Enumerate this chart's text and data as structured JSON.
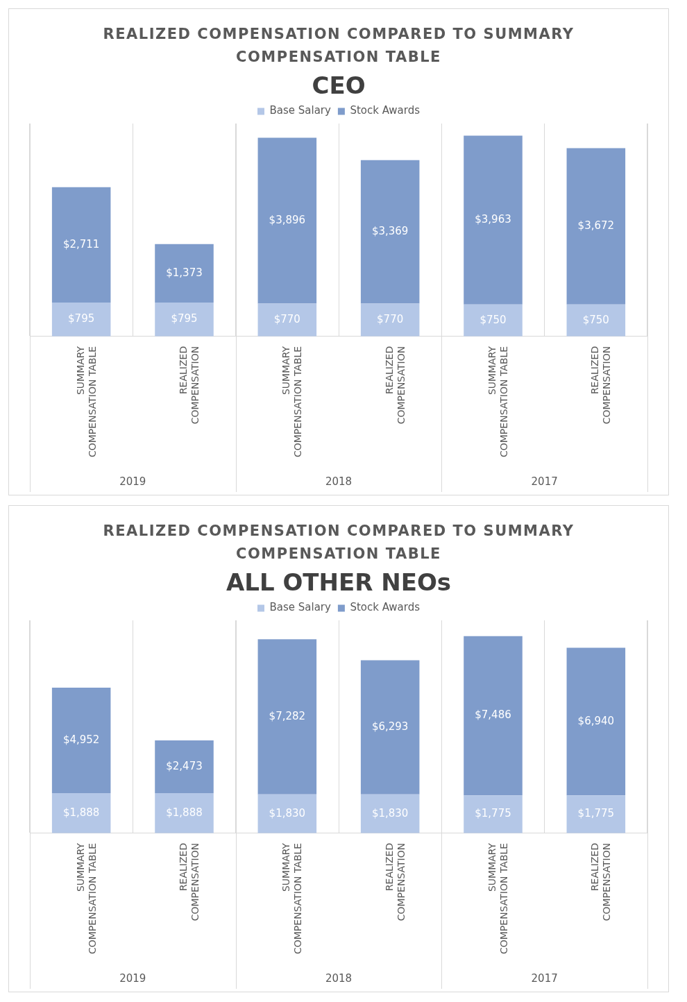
{
  "chart_data": [
    {
      "type": "bar",
      "title": "REALIZED COMPENSATION COMPARED TO SUMMARY COMPENSATION TABLE",
      "subtitle": "CEO",
      "categories": [
        "SUMMARY COMPENSATION TABLE",
        "REALIZED COMPENSATION",
        "SUMMARY COMPENSATION TABLE",
        "REALIZED COMPENSATION",
        "SUMMARY COMPENSATION TABLE",
        "REALIZED COMPENSATION"
      ],
      "stacked": true,
      "legend": "top",
      "grid": "x",
      "annotations": [
        "2019",
        "2018",
        "2017"
      ],
      "series": [
        {
          "name": "Base Salary",
          "color": "#b4c7e7",
          "values": [
            795,
            795,
            770,
            770,
            750,
            750
          ],
          "value_labels": [
            "$795",
            "$795",
            "$770",
            "$770",
            "$750",
            "$750"
          ]
        },
        {
          "name": "Stock Awards",
          "color": "#7f9ccb",
          "values": [
            2711,
            1373,
            3896,
            3369,
            3963,
            3672
          ],
          "value_labels": [
            "$2,711",
            "$1,373",
            "$3,896",
            "$3,369",
            "$3,963",
            "$3,672"
          ]
        }
      ]
    },
    {
      "type": "bar",
      "title": "REALIZED COMPENSATION COMPARED TO SUMMARY COMPENSATION TABLE",
      "subtitle": "ALL OTHER NEOs",
      "categories": [
        "SUMMARY COMPENSATION TABLE",
        "REALIZED COMPENSATION",
        "SUMMARY COMPENSATION TABLE",
        "REALIZED COMPENSATION",
        "SUMMARY COMPENSATION TABLE",
        "REALIZED COMPENSATION"
      ],
      "stacked": true,
      "legend": "top",
      "grid": "x",
      "annotations": [
        "2019",
        "2018",
        "2017"
      ],
      "series": [
        {
          "name": "Base Salary",
          "color": "#b4c7e7",
          "values": [
            1888,
            1888,
            1830,
            1830,
            1775,
            1775
          ],
          "value_labels": [
            "$1,888",
            "$1,888",
            "$1,830",
            "$1,830",
            "$1,775",
            "$1,775"
          ]
        },
        {
          "name": "Stock Awards",
          "color": "#7f9ccb",
          "values": [
            4952,
            2473,
            7282,
            6293,
            7486,
            6940
          ],
          "value_labels": [
            "$4,952",
            "$2,473",
            "$7,282",
            "$6,293",
            "$7,486",
            "$6,940"
          ]
        }
      ]
    }
  ]
}
